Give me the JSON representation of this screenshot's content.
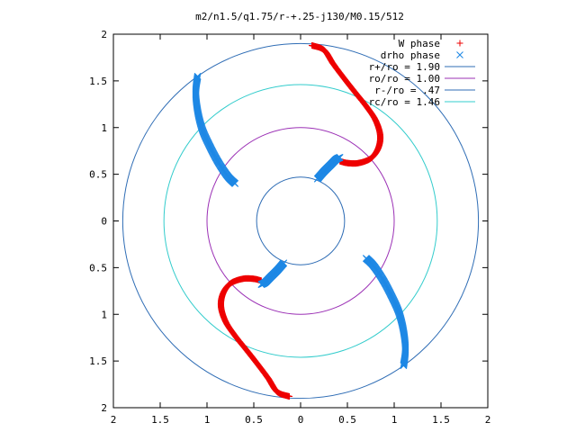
{
  "chart_data": {
    "type": "scatter",
    "title": "m2/n1.5/q1.75/r-+.25-j130/M0.15/512",
    "xlabel": "",
    "ylabel": "",
    "xlim": [
      -2,
      2
    ],
    "ylim": [
      -2,
      2
    ],
    "x_tick_values": [
      -2,
      -1.5,
      -1,
      -0.5,
      0,
      0.5,
      1,
      1.5,
      2
    ],
    "x_tick_labels": [
      "2",
      "1.5",
      "1",
      "0.5",
      "0",
      "0.5",
      "1",
      "1.5",
      "2"
    ],
    "y_tick_values": [
      2,
      1.5,
      1,
      0.5,
      0,
      -0.5,
      -1,
      -1.5,
      -2
    ],
    "y_tick_labels": [
      "2",
      "1.5",
      "1",
      "0.5",
      "0",
      "0.5",
      "1",
      "1.5",
      "2"
    ],
    "grid": false,
    "legend_position": "top-right",
    "circles": [
      {
        "name": "r+/ro = 1.90",
        "radius": 1.9,
        "color": "#2f6db5"
      },
      {
        "name": "ro/ro = 1.00",
        "radius": 1.0,
        "color": "#9b30b5"
      },
      {
        "name": "r-/ro = .47",
        "radius": 0.47,
        "color": "#2f6db5"
      },
      {
        "name": "rc/ro = 1.46",
        "radius": 1.46,
        "color": "#33cccc"
      }
    ],
    "series": [
      {
        "name": "W phase",
        "marker": "+",
        "color": "#ee0000",
        "arms": [
          [
            [
              0.12,
              1.88
            ],
            [
              0.25,
              1.83
            ],
            [
              0.35,
              1.68
            ],
            [
              0.47,
              1.52
            ],
            [
              0.58,
              1.38
            ],
            [
              0.7,
              1.23
            ],
            [
              0.8,
              1.08
            ],
            [
              0.85,
              0.92
            ],
            [
              0.83,
              0.78
            ],
            [
              0.75,
              0.67
            ],
            [
              0.62,
              0.62
            ],
            [
              0.5,
              0.62
            ],
            [
              0.42,
              0.64
            ]
          ],
          [
            [
              -0.12,
              -1.88
            ],
            [
              -0.25,
              -1.83
            ],
            [
              -0.35,
              -1.68
            ],
            [
              -0.47,
              -1.52
            ],
            [
              -0.58,
              -1.38
            ],
            [
              -0.7,
              -1.23
            ],
            [
              -0.8,
              -1.08
            ],
            [
              -0.85,
              -0.92
            ],
            [
              -0.83,
              -0.78
            ],
            [
              -0.75,
              -0.67
            ],
            [
              -0.62,
              -0.62
            ],
            [
              -0.5,
              -0.62
            ],
            [
              -0.42,
              -0.64
            ]
          ]
        ]
      },
      {
        "name": "drho phase",
        "marker": "x",
        "color": "#1e88e5",
        "arms": [
          [
            [
              -1.1,
              1.55
            ],
            [
              -1.12,
              1.38
            ],
            [
              -1.1,
              1.18
            ],
            [
              -1.05,
              0.98
            ],
            [
              -0.97,
              0.8
            ],
            [
              -0.88,
              0.63
            ],
            [
              -0.78,
              0.48
            ],
            [
              -0.7,
              0.4
            ]
          ],
          [
            [
              0.18,
              0.45
            ],
            [
              0.25,
              0.53
            ],
            [
              0.32,
              0.6
            ],
            [
              0.38,
              0.66
            ],
            [
              0.42,
              0.68
            ]
          ],
          [
            [
              1.1,
              -1.55
            ],
            [
              1.12,
              -1.38
            ],
            [
              1.1,
              -1.18
            ],
            [
              1.05,
              -0.98
            ],
            [
              0.97,
              -0.8
            ],
            [
              0.88,
              -0.63
            ],
            [
              0.78,
              -0.48
            ],
            [
              0.7,
              -0.4
            ]
          ],
          [
            [
              -0.18,
              -0.45
            ],
            [
              -0.25,
              -0.53
            ],
            [
              -0.32,
              -0.6
            ],
            [
              -0.38,
              -0.66
            ],
            [
              -0.42,
              -0.68
            ]
          ]
        ]
      }
    ]
  }
}
